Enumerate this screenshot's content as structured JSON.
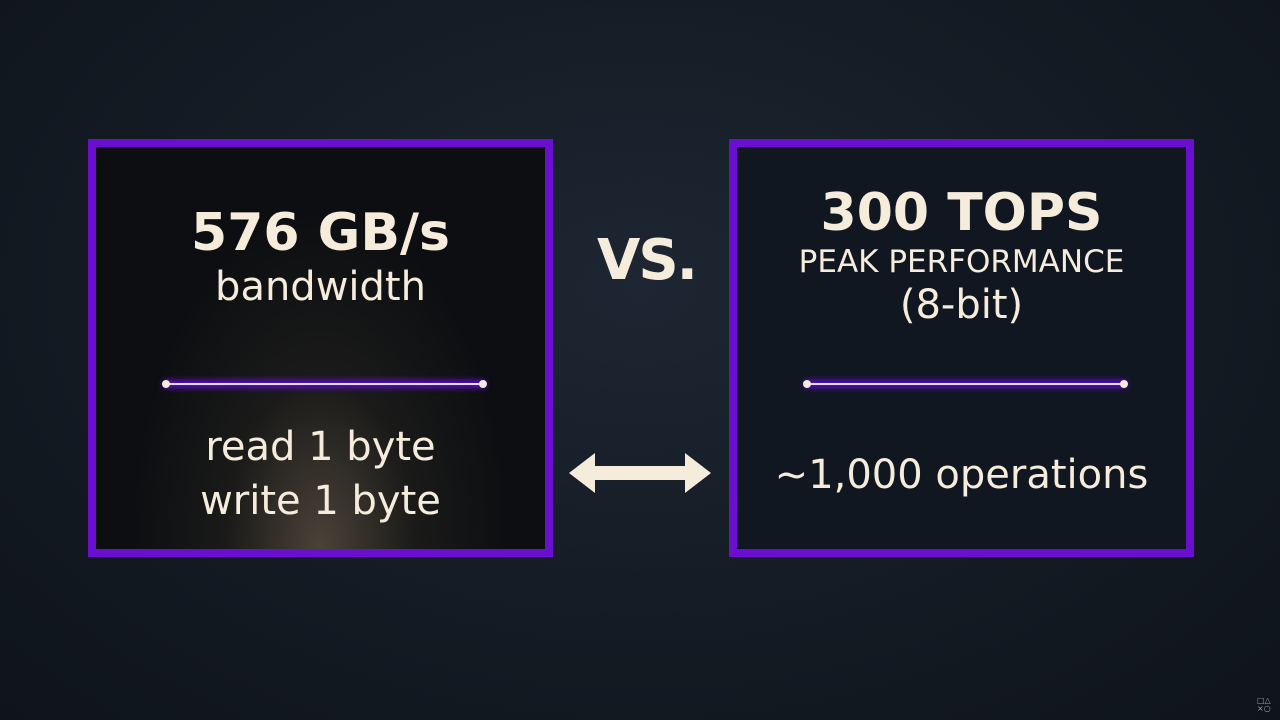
{
  "left_box": {
    "headline": "576 GB/s",
    "subtitle": "bandwidth",
    "lines": [
      "read 1 byte",
      "write 1 byte"
    ]
  },
  "versus_label": "VS.",
  "right_box": {
    "headline": "300 TOPS",
    "subtitle": "PEAK PERFORMANCE",
    "qualifier": "(8-bit)",
    "lines": [
      "~1,000 operations"
    ]
  },
  "colors": {
    "accent": "#6a0fd0",
    "text": "#f6ecdc",
    "background": "#141b24"
  },
  "icons": {
    "arrow": "double-arrow-icon",
    "logo": "playstation-symbols-logo"
  }
}
